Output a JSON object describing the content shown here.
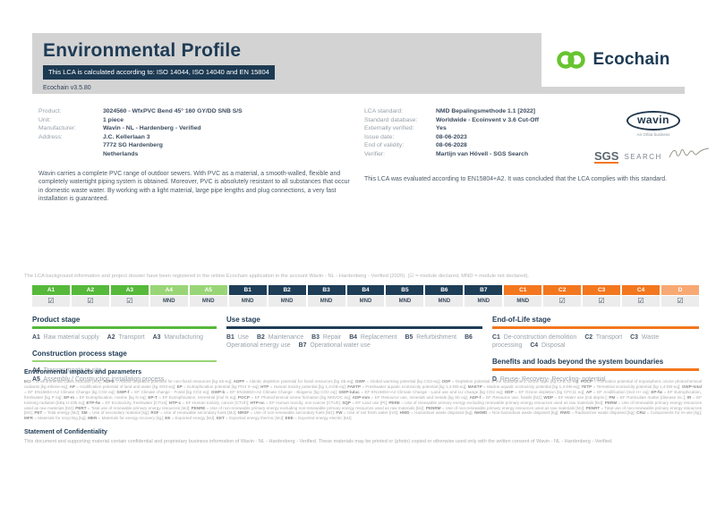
{
  "page": {
    "title": "Environmental Profile",
    "badge": "This LCA is calculated according to: ISO 14044, ISO 14040 and EN 15804",
    "version": "Ecochain v3.5.80"
  },
  "brand": {
    "name": "Ecochain",
    "logo_green": "#67c42e",
    "navy": "#1d3a53"
  },
  "product_info": [
    {
      "label": "Product:",
      "value": "3024560 - WfxPVC Bend 45° 160 GY/DD SNB S/S"
    },
    {
      "label": "Unit:",
      "value": "1 piece"
    },
    {
      "label": "Manufacturer:",
      "value": "Wavin - NL - Hardenberg - Verified"
    },
    {
      "label": "Address:",
      "value": "J.C. Kellerlaan 3\n7772 SG Hardenberg\nNetherlands"
    }
  ],
  "lca_info": [
    {
      "label": "LCA standard:",
      "value": "NMD Bepalingsmethode 1.1 [2022]"
    },
    {
      "label": "Standard database:",
      "value": "Worldwide - Ecoinvent v 3.6 Cut-Off"
    },
    {
      "label": "Externally verified:",
      "value": "Yes"
    },
    {
      "label": "Issue date:",
      "value": "08-06-2023"
    },
    {
      "label": "End of validity:",
      "value": "08-06-2028"
    },
    {
      "label": "Verifier:",
      "value": "Martijn van Hövell - SGS Search"
    }
  ],
  "wavin": {
    "name": "wavin",
    "tagline": "An Orbia business"
  },
  "sgs": {
    "name": "SGS",
    "sub": "SEARCH"
  },
  "description": "Wavin carries a complete PVC range of outdoor sewers. With PVC as a material, a smooth-walled, flexible and completely watertight piping system is obtained. Moreover, PVC is absolutely resistant to all substances that occur in domestic waste water. By working with a light material, large pipe lengths and plug connections, a very fast installation is guaranteed.",
  "evaluation": "This LCA was evaluated according to EN15804+A2. It was concluded that the LCA complies with this standard.",
  "registration_note": "The LCA background information and project dossier have been registered in the online Ecochain application in the account Wavin - NL - Hardenberg - Verified (2020). (☑ = module declared, MND = module not declared).",
  "module_symbols": {
    "declared": "☑",
    "not_declared": "MND"
  },
  "module_colors": {
    "product": "#56b93a",
    "construction": "#99d576",
    "use": "#1e3d57",
    "eol": "#f3771e",
    "benefits": "#f8a873"
  },
  "modules": [
    {
      "id": "A1",
      "group": "product",
      "status": "declared"
    },
    {
      "id": "A2",
      "group": "product",
      "status": "declared"
    },
    {
      "id": "A3",
      "group": "product",
      "status": "declared"
    },
    {
      "id": "A4",
      "group": "construction",
      "status": "not_declared"
    },
    {
      "id": "A5",
      "group": "construction",
      "status": "not_declared"
    },
    {
      "id": "B1",
      "group": "use",
      "status": "not_declared"
    },
    {
      "id": "B2",
      "group": "use",
      "status": "not_declared"
    },
    {
      "id": "B3",
      "group": "use",
      "status": "not_declared"
    },
    {
      "id": "B4",
      "group": "use",
      "status": "not_declared"
    },
    {
      "id": "B5",
      "group": "use",
      "status": "not_declared"
    },
    {
      "id": "B6",
      "group": "use",
      "status": "not_declared"
    },
    {
      "id": "B7",
      "group": "use",
      "status": "not_declared"
    },
    {
      "id": "C1",
      "group": "eol",
      "status": "not_declared"
    },
    {
      "id": "C2",
      "group": "eol",
      "status": "declared"
    },
    {
      "id": "C3",
      "group": "eol",
      "status": "declared"
    },
    {
      "id": "C4",
      "group": "eol",
      "status": "declared"
    },
    {
      "id": "D",
      "group": "benefits",
      "status": "declared"
    }
  ],
  "stage_groups": [
    {
      "key": "product",
      "title": "Product stage",
      "color": "#56b93a",
      "column": 1,
      "layout": "inline",
      "items": [
        {
          "code": "A1",
          "label": "Raw material supply"
        },
        {
          "code": "A2",
          "label": "Transport"
        },
        {
          "code": "A3",
          "label": "Manufacturing"
        }
      ]
    },
    {
      "key": "construction",
      "title": "Construction process stage",
      "color": "#99d576",
      "column": 1,
      "layout": "lines",
      "items": [
        {
          "code": "A4",
          "label": "Transport gate to site"
        },
        {
          "code": "A5",
          "label": "Assembly / Construction installation process"
        }
      ]
    },
    {
      "key": "use",
      "title": "Use stage",
      "color": "#1e3d57",
      "column": 2,
      "layout": "inline",
      "items": [
        {
          "code": "B1",
          "label": "Use"
        },
        {
          "code": "B2",
          "label": "Maintenance"
        },
        {
          "code": "B3",
          "label": "Repair"
        },
        {
          "code": "B4",
          "label": "Replacement"
        },
        {
          "code": "B5",
          "label": "Refurbishment"
        },
        {
          "code": "B6",
          "label": "Operational energy use"
        },
        {
          "code": "B7",
          "label": "Operational water use"
        }
      ]
    },
    {
      "key": "eol",
      "title": "End-of-Life stage",
      "color": "#f3771e",
      "column": 3,
      "layout": "inline",
      "items": [
        {
          "code": "C1",
          "label": "De-construction demolition"
        },
        {
          "code": "C2",
          "label": "Transport"
        },
        {
          "code": "C3",
          "label": "Waste processing"
        },
        {
          "code": "C4",
          "label": "Disposal"
        }
      ]
    },
    {
      "key": "benefits",
      "title": "Benefits and loads beyond the system boundaries",
      "color": "#f3771e",
      "column": 3,
      "layout": "inline",
      "items": [
        {
          "code": "D",
          "label": "Reuse- Recovery- Recycling- potential"
        }
      ]
    }
  ],
  "impacts": {
    "title": "Environmental impacts and parameters",
    "legend": [
      {
        "abbr": "ECI",
        "desc": "Environmental Costs Indicator [eur]"
      },
      {
        "abbr": "ADPE",
        "desc": "Abiotic depletion potential for non-fossil resources [kg Sb-eq]"
      },
      {
        "abbr": "ADPF",
        "desc": "Abiotic depletion potential for fossil resources [kg Sb-eq]"
      },
      {
        "abbr": "GWP",
        "desc": "Global warming potential [kg CO2-eq]"
      },
      {
        "abbr": "ODP",
        "desc": "Depletion potential of the stratospheric ozone layer [kg CFC-11-eq]"
      },
      {
        "abbr": "POCP",
        "desc": "Formation potential of tropospheric ozone photochemical oxidants [kg ethene-eq]"
      },
      {
        "abbr": "AP",
        "desc": "Acidification potential of land and water [kg SO2-eq]"
      },
      {
        "abbr": "EP",
        "desc": "Eutrophication potential [kg PO4 3--eq]"
      },
      {
        "abbr": "HTP",
        "desc": "Human toxicity potential [kg 1,4-DB-eq]"
      },
      {
        "abbr": "FAETP",
        "desc": "Freshwater aquatic ecotoxicity potential [kg 1,4-DB-eq]"
      },
      {
        "abbr": "MAETP",
        "desc": "Marine aquatic ecotoxicity potential [kg 1,4-DB-eq]"
      },
      {
        "abbr": "TETP",
        "desc": "Terrestrial ecotoxicity potential [kg 1,4-DB-eq]"
      },
      {
        "abbr": "GWP-total",
        "desc": "EF EN15804+A2 Climate Change [kg CO2 eq]"
      },
      {
        "abbr": "GWP-f",
        "desc": "EF Climate change - Fossil [kg CO2 eq]"
      },
      {
        "abbr": "GWP-b",
        "desc": "EF EN15804+A2 Climate Change - Biogenic [kg CO2 eq]"
      },
      {
        "abbr": "GWP-luluc",
        "desc": "EF EN15804+A2 Climate Change - Land use and LU change [kg CO2 eq]"
      },
      {
        "abbr": "ODP",
        "desc": "EF Ozone depletion [kg CFC11 eq]"
      },
      {
        "abbr": "AP",
        "desc": "EF Acidification [mol H+ eq]"
      },
      {
        "abbr": "EP-fw",
        "desc": "EF Eutrophication, freshwater [kg P eq]"
      },
      {
        "abbr": "EP-m",
        "desc": "EF Eutrophication, marine [kg N eq]"
      },
      {
        "abbr": "EP-T",
        "desc": "EF Eutrophication, terrestrial [mol N eq]"
      },
      {
        "abbr": "POCP",
        "desc": "EF Photochemical ozone formation [kg NMVOC eq]"
      },
      {
        "abbr": "ADP-mm",
        "desc": "EF Resource use, minerals and metals [kg Sb eq]"
      },
      {
        "abbr": "ADP-f",
        "desc": "EF Resource use, fossils [MJ]"
      },
      {
        "abbr": "WDP",
        "desc": "EF Water use [m3 depriv.]"
      },
      {
        "abbr": "PM",
        "desc": "EF Particulate matter [disease inc.]"
      },
      {
        "abbr": "IR",
        "desc": "EF Ionising radiation [kBq U-235 eq]"
      },
      {
        "abbr": "ETP-fw",
        "desc": "EF Ecotoxicity, freshwater [CTUe]"
      },
      {
        "abbr": "HTP-c",
        "desc": "EF Human toxicity, cancer [CTUh]"
      },
      {
        "abbr": "HTP-nc",
        "desc": "EF Human toxicity, non-cancer [CTUh]"
      },
      {
        "abbr": "SQP",
        "desc": "EF Land use [Pt]"
      },
      {
        "abbr": "PERE",
        "desc": "Use of renewable primary energy excluding renewable primary energy resources used as raw materials [MJ]"
      },
      {
        "abbr": "PERM",
        "desc": "Use of renewable primary energy resources used as raw materials [MJ]"
      },
      {
        "abbr": "PERT",
        "desc": "Total use of renewable primary energy resources [MJ]"
      },
      {
        "abbr": "PENRE",
        "desc": "Use of non-renewable primary energy excluding non-renewable primary energy resources used as raw materials [MJ]"
      },
      {
        "abbr": "PENRM",
        "desc": "Use of non-renewable primary energy resources used as raw materials [MJ]"
      },
      {
        "abbr": "PENRT",
        "desc": "Total use of non-renewable primary energy resources [MJ]"
      },
      {
        "abbr": "PET",
        "desc": "Total energy [MJ]"
      },
      {
        "abbr": "SM",
        "desc": "Use of secondary material [kg]"
      },
      {
        "abbr": "RSF",
        "desc": "Use of renewable secondary fuels [MJ]"
      },
      {
        "abbr": "NRSF",
        "desc": "Use of non-renewable secondary fuels [MJ]"
      },
      {
        "abbr": "FW",
        "desc": "Use of net fresh water [m3]"
      },
      {
        "abbr": "HWD",
        "desc": "Hazardous waste disposed [kg]"
      },
      {
        "abbr": "NHWD",
        "desc": "Non-hazardous waste disposed [kg]"
      },
      {
        "abbr": "RWD",
        "desc": "Radioactive waste disposed [kg]"
      },
      {
        "abbr": "CRU",
        "desc": "Components for re-use [kg]"
      },
      {
        "abbr": "MFR",
        "desc": "Materials for recycling [kg]"
      },
      {
        "abbr": "MER",
        "desc": "Materials for energy recovery [kg]"
      },
      {
        "abbr": "EE",
        "desc": "Exported energy [MJ]"
      },
      {
        "abbr": "EET",
        "desc": "Exported energy thermic [MJ]"
      },
      {
        "abbr": "EEE",
        "desc": "Exported energy electric [MJ]"
      }
    ]
  },
  "confidentiality": {
    "title": "Statement of Confidentiality",
    "text": "This document and supporting material contain confidential and proprietary business information of Wavin - NL - Hardenberg - Verified. These materials may be printed or (photo) copied or otherwise used only with the written consent of Wavin - NL - Hardenberg - Verified."
  }
}
